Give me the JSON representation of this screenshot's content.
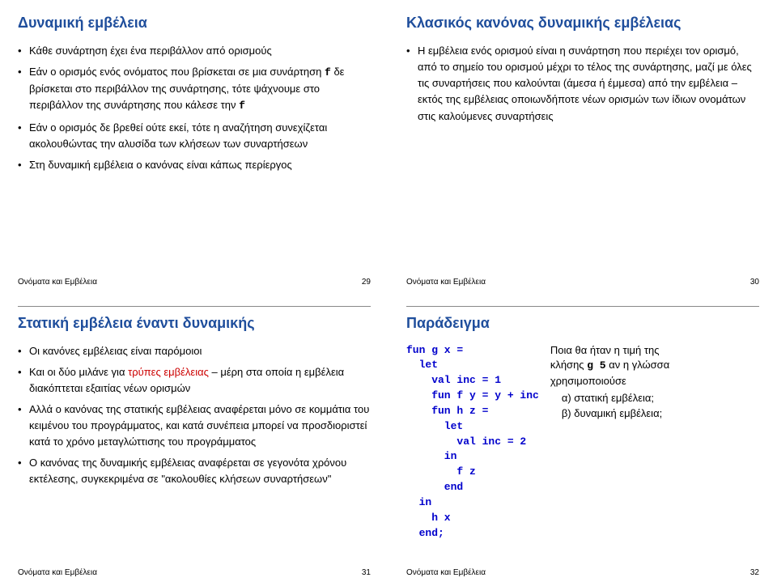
{
  "footer_label": "Ονόματα και Εμβέλεια",
  "slide1": {
    "title": "Δυναμική εμβέλεια",
    "bullets": [
      "Κάθε συνάρτηση έχει ένα περιβάλλον από ορισμούς",
      "Εάν ο ορισμός ενός ονόματος που βρίσκεται σε μια συνάρτηση <code>f</code> δε βρίσκεται στο περιβάλλον της συνάρτησης, τότε ψάχνουμε στο περιβάλλον της συνάρτησης που κάλεσε την <code>f</code>",
      "Εάν ο ορισμός δε βρεθεί ούτε εκεί, τότε η αναζήτηση συνεχίζεται ακολουθώντας την αλυσίδα των κλήσεων των συναρτήσεων",
      "Στη δυναμική εμβέλεια ο κανόνας είναι κάπως περίεργος"
    ],
    "page": "29"
  },
  "slide2": {
    "title": "Κλασικός κανόνας δυναμικής εμβέλειας",
    "bullets": [
      "Η εμβέλεια ενός ορισμού είναι η συνάρτηση που περιέχει τον ορισμό, από το σημείο του ορισμού μέχρι το τέλος της συνάρτησης, μαζί με όλες τις συναρτήσεις που καλούνται (άμεσα ή έμμεσα) από την εμβέλεια – εκτός της εμβέλειας οποιωνδήποτε νέων ορισμών των ίδιων ονομάτων στις καλούμενες συναρτήσεις"
    ],
    "page": "30"
  },
  "slide3": {
    "title": "Στατική εμβέλεια έναντι δυναμικής",
    "bullets": [
      "Οι κανόνες εμβέλειας είναι παρόμοιοι",
      "Και οι δύο μιλάνε για <span class=\"red\">τρύπες εμβέλειας</span> – μέρη στα οποία η εμβέλεια διακόπτεται εξαιτίας νέων ορισμών",
      "Αλλά ο κανόνας της στατικής εμβέλειας αναφέρεται μόνο σε κομμάτια του κειμένου του προγράμματος, και κατά συνέπεια μπορεί να προσδιοριστεί κατά το χρόνο μεταγλώττισης του προγράμματος",
      "Ο κανόνας της δυναμικής εμβέλειας αναφέρεται σε γεγονότα χρόνου εκτέλεσης, συγκεκριμένα σε \"ακολουθίες κλήσεων συναρτήσεων\""
    ],
    "page": "31"
  },
  "slide4": {
    "title": "Παράδειγμα",
    "code": "fun g x =\n  let\n    val inc = 1\n    fun f y = y + inc\n    fun h z =\n      let\n        val inc = 2\n      in\n        f z\n      end\n  in\n    h x\n  end;",
    "question_l1": "Ποια θα ήταν η τιμή της",
    "question_call": "g 5",
    "question_l1b": " αν η γλώσσα",
    "question_l2": "χρησιμοποιούσε",
    "opt_a": "α) στατική εμβέλεια;",
    "opt_b": "β) δυναμική εμβέλεια;",
    "question_word_klhshs": "κλήσης ",
    "page": "32"
  }
}
